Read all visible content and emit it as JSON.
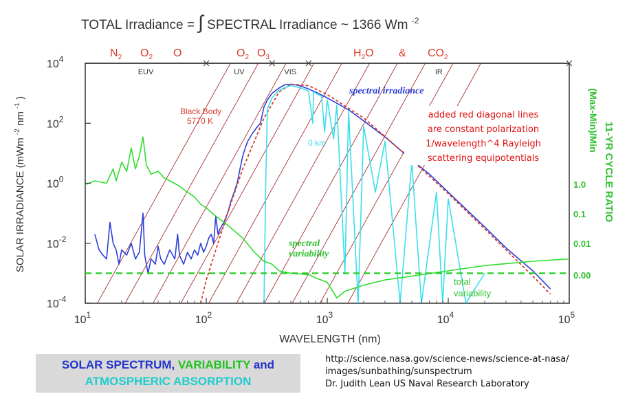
{
  "chart_data": {
    "type": "line",
    "title": "TOTAL Irradiance = ∫SPECTRAL Irradiance ~ 1366 Wm⁻²",
    "title_parts": {
      "lhs": "TOTAL Irradiance =",
      "integral": "∫",
      "rhs": "SPECTRAL Irradiance ~ 1366 Wm",
      "exp": "-2"
    },
    "xlabel": "WAVELENGTH (nm)",
    "ylabel": "SOLAR IRRADIANCE (mWm⁻²nm⁻¹)",
    "ylabel_parts": {
      "main": "SOLAR IRRADIANCE (mWm",
      "e1": "-2",
      "mid": "nm",
      "e2": "-1",
      "end": ")"
    },
    "y2label": "11-YR CYCLE RATIO (Max-Min)/Min",
    "y2label_parts": {
      "a": "11-YR CYCLE RATIO",
      "b": "(Max-Min)/Min"
    },
    "xscale": "log",
    "yscale": "log",
    "xlim": [
      10,
      100000
    ],
    "ylim": [
      0.0001,
      10000
    ],
    "x_ticks": [
      {
        "base": "10",
        "exp": "1",
        "value": 10
      },
      {
        "base": "10",
        "exp": "2",
        "value": 100
      },
      {
        "base": "10",
        "exp": "3",
        "value": 1000
      },
      {
        "base": "10",
        "exp": "4",
        "value": 10000
      },
      {
        "base": "10",
        "exp": "5",
        "value": 100000
      }
    ],
    "y_ticks": [
      {
        "base": "10",
        "exp": "4",
        "value": 10000
      },
      {
        "base": "10",
        "exp": "2",
        "value": 100
      },
      {
        "base": "10",
        "exp": "0",
        "value": 1
      },
      {
        "base": "10",
        "exp": "-2",
        "value": 0.01
      },
      {
        "base": "10",
        "exp": "-4",
        "value": 0.0001
      }
    ],
    "y2_ticks": [
      "1.0",
      "0.1",
      "0.01",
      "0.00"
    ],
    "regions": [
      {
        "label": "EUV",
        "from": 10,
        "to": 100
      },
      {
        "label": "UV",
        "from": 100,
        "to": 350
      },
      {
        "label": "VIS",
        "from": 350,
        "to": 700
      },
      {
        "label": "IR",
        "from": 700,
        "to": 100000
      }
    ],
    "absorbers": [
      {
        "label": "N",
        "sub": "2"
      },
      {
        "label": "O",
        "sub": "2"
      },
      {
        "label": "O",
        "sub": ""
      },
      {
        "label": "O",
        "sub": "2"
      },
      {
        "label": "O",
        "sub": "3"
      },
      {
        "label": "H",
        "sub": "2",
        "suffix": "O"
      },
      {
        "label": "&",
        "sub": ""
      },
      {
        "label": "CO",
        "sub": "2"
      }
    ],
    "annotations": {
      "black_body": "Black Body",
      "black_body_temp": "5770 K",
      "spectral_irradiance": "spectral irradiance",
      "spectral_variability_1": "spectral",
      "spectral_variability_2": "variability",
      "total_variability_1": "total",
      "total_variability_2": "variability",
      "o_km": "0 km",
      "note_lines": [
        "added red diagonal lines",
        "are constant polarization",
        "1/wavelength^4 Rayleigh",
        "scattering equipotentials"
      ]
    },
    "series": [
      {
        "name": "spectral irradiance",
        "color": "#2b3fd8",
        "points": [
          [
            12,
            0.02
          ],
          [
            13,
            0.006
          ],
          [
            14,
            0.004
          ],
          [
            15,
            0.003
          ],
          [
            16,
            0.05
          ],
          [
            17,
            0.01
          ],
          [
            18,
            0.006
          ],
          [
            19,
            0.002
          ],
          [
            20,
            0.006
          ],
          [
            22,
            0.004
          ],
          [
            24,
            0.01
          ],
          [
            26,
            0.003
          ],
          [
            28,
            0.005
          ],
          [
            30,
            0.1
          ],
          [
            31,
            0.004
          ],
          [
            33,
            0.001
          ],
          [
            35,
            0.003
          ],
          [
            38,
            0.002
          ],
          [
            40,
            0.008
          ],
          [
            42,
            0.003
          ],
          [
            45,
            0.002
          ],
          [
            48,
            0.004
          ],
          [
            50,
            0.006
          ],
          [
            55,
            0.003
          ],
          [
            58,
            0.02
          ],
          [
            60,
            0.004
          ],
          [
            65,
            0.002
          ],
          [
            70,
            0.005
          ],
          [
            75,
            0.003
          ],
          [
            80,
            0.006
          ],
          [
            85,
            0.004
          ],
          [
            90,
            0.01
          ],
          [
            95,
            0.005
          ],
          [
            100,
            0.008
          ],
          [
            105,
            0.015
          ],
          [
            110,
            0.02
          ],
          [
            115,
            0.01
          ],
          [
            120,
            0.08
          ],
          [
            125,
            0.02
          ],
          [
            130,
            0.03
          ],
          [
            140,
            0.05
          ],
          [
            150,
            0.1
          ],
          [
            160,
            0.25
          ],
          [
            170,
            0.5
          ],
          [
            180,
            1.0
          ],
          [
            190,
            3
          ],
          [
            200,
            8
          ],
          [
            210,
            15
          ],
          [
            220,
            25
          ],
          [
            240,
            45
          ],
          [
            260,
            70
          ],
          [
            280,
            100
          ],
          [
            300,
            350
          ],
          [
            320,
            600
          ],
          [
            350,
            1000
          ],
          [
            400,
            1500
          ],
          [
            450,
            1950
          ],
          [
            500,
            2000
          ],
          [
            550,
            1900
          ],
          [
            600,
            1750
          ],
          [
            700,
            1400
          ],
          [
            800,
            1100
          ],
          [
            1000,
            700
          ],
          [
            1500,
            280
          ],
          [
            2000,
            120
          ],
          [
            3000,
            35
          ],
          [
            5000,
            6
          ],
          [
            7000,
            2
          ],
          [
            10000,
            0.5
          ],
          [
            20000,
            0.035
          ],
          [
            30000,
            0.007
          ],
          [
            50000,
            0.0012
          ],
          [
            70000,
            0.0003
          ]
        ]
      },
      {
        "name": "Black Body 5770 K",
        "color": "#d83a2a",
        "dashed": true,
        "points": [
          [
            90,
            0.0001
          ],
          [
            100,
            0.0006
          ],
          [
            120,
            0.006
          ],
          [
            150,
            0.1
          ],
          [
            200,
            3
          ],
          [
            250,
            25
          ],
          [
            300,
            150
          ],
          [
            400,
            1100
          ],
          [
            500,
            2000
          ],
          [
            700,
            1800
          ],
          [
            1000,
            900
          ],
          [
            2000,
            150
          ],
          [
            5000,
            6
          ],
          [
            10000,
            0.45
          ],
          [
            20000,
            0.03
          ],
          [
            50000,
            0.0008
          ],
          [
            70000,
            0.0002
          ]
        ]
      },
      {
        "name": "0 km",
        "color": "#38e0ee",
        "points": [
          [
            300,
            0.0001
          ],
          [
            310,
            1
          ],
          [
            320,
            300
          ],
          [
            350,
            700
          ],
          [
            400,
            1300
          ],
          [
            500,
            1800
          ],
          [
            600,
            1500
          ],
          [
            700,
            1200
          ],
          [
            760,
            100
          ],
          [
            770,
            1100
          ],
          [
            900,
            800
          ],
          [
            950,
            50
          ],
          [
            1000,
            600
          ],
          [
            1130,
            30
          ],
          [
            1200,
            400
          ],
          [
            1400,
            0.001
          ],
          [
            1500,
            250
          ],
          [
            1800,
            0.0001
          ],
          [
            2000,
            80
          ],
          [
            2500,
            0.5
          ],
          [
            3000,
            25
          ],
          [
            4000,
            0.0001
          ],
          [
            5000,
            5
          ],
          [
            6000,
            0.0001
          ],
          [
            8000,
            0.5
          ],
          [
            9000,
            0.0001
          ],
          [
            10000,
            0.3
          ],
          [
            14000,
            0.0001
          ],
          [
            20000,
            0.001
          ]
        ]
      },
      {
        "name": "spectral variability",
        "color": "#30dd30",
        "points": [
          [
            10,
            0.9
          ],
          [
            12,
            1.2
          ],
          [
            15,
            1.0
          ],
          [
            17,
            3
          ],
          [
            18,
            1.2
          ],
          [
            20,
            5
          ],
          [
            22,
            2.5
          ],
          [
            24,
            15
          ],
          [
            26,
            3
          ],
          [
            28,
            8
          ],
          [
            30,
            35
          ],
          [
            32,
            4
          ],
          [
            35,
            2
          ],
          [
            40,
            2.5
          ],
          [
            45,
            1.5
          ],
          [
            50,
            1.2
          ],
          [
            60,
            0.8
          ],
          [
            70,
            0.5
          ],
          [
            80,
            0.35
          ],
          [
            90,
            0.2
          ],
          [
            100,
            0.15
          ],
          [
            120,
            0.08
          ],
          [
            150,
            0.04
          ],
          [
            200,
            0.015
          ],
          [
            250,
            0.005
          ],
          [
            300,
            0.0025
          ],
          [
            350,
            0.002
          ],
          [
            400,
            0.0012
          ],
          [
            500,
            0.001
          ],
          [
            700,
            0.0009
          ],
          [
            800,
            0.0007
          ],
          [
            1000,
            0.0005
          ],
          [
            1200,
            0.00015
          ],
          [
            1400,
            0.00025
          ],
          [
            1600,
            0.0003
          ],
          [
            2000,
            0.0004
          ],
          [
            3000,
            0.0006
          ],
          [
            5000,
            0.0008
          ],
          [
            10000,
            0.0012
          ],
          [
            20000,
            0.0018
          ],
          [
            50000,
            0.0025
          ],
          [
            100000,
            0.003
          ]
        ]
      }
    ],
    "total_variability_level": 0.001,
    "rayleigh_lines": 10
  },
  "caption": {
    "part1": "SOLAR SPECTRUM, ",
    "part2": "VARIABILITY",
    "part3": " and",
    "part4": "ATMOSPHERIC ABSORPTION"
  },
  "source": {
    "line1": "http://science.nasa.gov/science-news/science-at-nasa/",
    "line2": "images/sunbathing/sunspectrum",
    "line3": "Dr. Judith Lean  US Naval Research Laboratory"
  }
}
